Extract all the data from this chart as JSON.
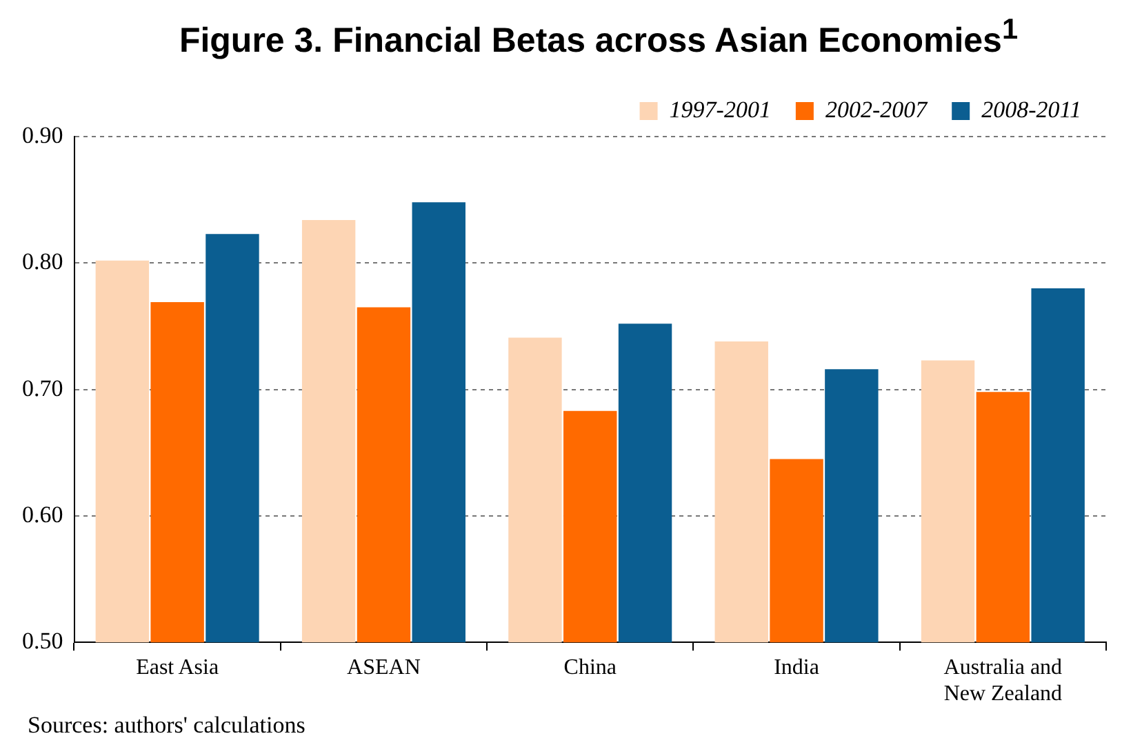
{
  "chart_data": {
    "type": "bar",
    "title": "Figure 3. Financial Betas across Asian Economies$^{1}$",
    "categories": [
      "East Asia",
      "ASEAN",
      "China",
      "India",
      "Australia and New Zealand"
    ],
    "series": [
      {
        "name": "1997-2001",
        "color": "#fdd5b4",
        "values": [
          0.802,
          0.834,
          0.741,
          0.738,
          0.723
        ]
      },
      {
        "name": "2002-2007",
        "color": "#ff6a00",
        "values": [
          0.769,
          0.765,
          0.683,
          0.645,
          0.698
        ]
      },
      {
        "name": "2008-2011",
        "color": "#0b5e91",
        "values": [
          0.823,
          0.848,
          0.752,
          0.716,
          0.78
        ]
      }
    ],
    "ylim": [
      0.5,
      0.9
    ],
    "yticks": [
      {
        "value": 0.5,
        "label": "0.50"
      },
      {
        "value": 0.6,
        "label": "0.60"
      },
      {
        "value": 0.7,
        "label": "0.70"
      },
      {
        "value": 0.8,
        "label": "0.80"
      },
      {
        "value": 0.9,
        "label": "0.90"
      }
    ],
    "grid": "y",
    "legend": "top right",
    "annotations": [
      "Sources: authors' calculations"
    ]
  }
}
